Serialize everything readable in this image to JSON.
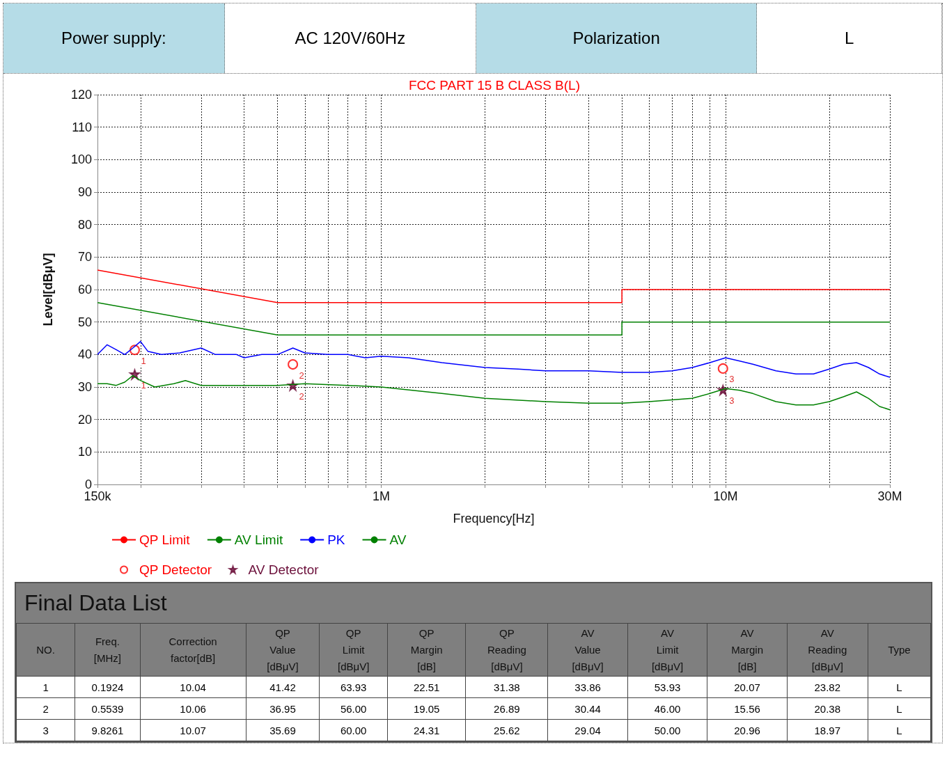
{
  "chart_data": [
    {
      "type": "other",
      "cell_labels": [
        [
          "Power supply:",
          "AC 120V/60Hz",
          "Polarization",
          "L"
        ]
      ]
    },
    {
      "type": "line",
      "title": "FCC PART 15 B CLASS B(L)",
      "xlabel": "Frequency[Hz]",
      "ylabel": "Level[dBμV]",
      "log": "x",
      "grid": true,
      "legend": "bottom left",
      "marker": "none",
      "line_style": "solid",
      "xlim": [
        150000,
        30000000
      ],
      "xticks": [
        {
          "value": 150000,
          "label": "150k"
        },
        {
          "value": 200000,
          "label": null
        },
        {
          "value": 300000,
          "label": null
        },
        {
          "value": 400000,
          "label": null
        },
        {
          "value": 500000,
          "label": null
        },
        {
          "value": 600000,
          "label": null
        },
        {
          "value": 700000,
          "label": null
        },
        {
          "value": 800000,
          "label": null
        },
        {
          "value": 900000,
          "label": null
        },
        {
          "value": 1000000,
          "label": "1M"
        },
        {
          "value": 2000000,
          "label": null
        },
        {
          "value": 3000000,
          "label": null
        },
        {
          "value": 4000000,
          "label": null
        },
        {
          "value": 5000000,
          "label": null
        },
        {
          "value": 6000000,
          "label": null
        },
        {
          "value": 7000000,
          "label": null
        },
        {
          "value": 8000000,
          "label": null
        },
        {
          "value": 9000000,
          "label": null
        },
        {
          "value": 10000000,
          "label": "10M"
        },
        {
          "value": 20000000,
          "label": null
        },
        {
          "value": 30000000,
          "label": "30M"
        }
      ],
      "ylim": [
        0,
        120
      ],
      "yticks": [
        0,
        10,
        20,
        30,
        40,
        50,
        60,
        70,
        80,
        90,
        100,
        110,
        120
      ],
      "series": [
        {
          "name": "QP Limit",
          "color": "#ff0000",
          "x": [
            150000,
            500000,
            5000000,
            5000000,
            30000000
          ],
          "values": [
            66,
            56,
            56,
            60,
            60
          ]
        },
        {
          "name": "AV Limit",
          "color": "#008000",
          "x": [
            150000,
            500000,
            5000000,
            5000000,
            30000000
          ],
          "values": [
            56,
            46,
            46,
            50,
            50
          ]
        },
        {
          "name": "PK",
          "color": "#0000ff",
          "x": [
            150000,
            160000,
            170000,
            180000,
            190000,
            200000,
            210000,
            230000,
            260000,
            300000,
            330000,
            380000,
            400000,
            450000,
            500000,
            554000,
            600000,
            700000,
            800000,
            900000,
            1000000,
            1200000,
            1500000,
            2000000,
            2500000,
            3000000,
            4000000,
            5000000,
            6000000,
            7000000,
            8000000,
            9000000,
            10000000,
            11000000,
            12000000,
            14000000,
            16000000,
            18000000,
            20000000,
            22000000,
            24000000,
            26000000,
            28000000,
            30000000
          ],
          "values": [
            40,
            43,
            41.5,
            40,
            42,
            44,
            41,
            40,
            40.5,
            42,
            40,
            40,
            39,
            40,
            40,
            42,
            40.5,
            40,
            40,
            39,
            39.5,
            39,
            37.5,
            36,
            35.5,
            35,
            35,
            34.5,
            34.5,
            35,
            36,
            37.5,
            39,
            38,
            37,
            35,
            34,
            34,
            35.5,
            37,
            37.5,
            36,
            34,
            33
          ]
        },
        {
          "name": "AV",
          "color": "#008000",
          "x": [
            150000,
            160000,
            170000,
            180000,
            190000,
            200000,
            220000,
            250000,
            270000,
            300000,
            400000,
            500000,
            600000,
            800000,
            1000000,
            1500000,
            2000000,
            3000000,
            4000000,
            5000000,
            6000000,
            8000000,
            9000000,
            10000000,
            11000000,
            12000000,
            14000000,
            16000000,
            18000000,
            20000000,
            22000000,
            24000000,
            26000000,
            28000000,
            30000000
          ],
          "values": [
            31,
            31,
            30.5,
            31.5,
            33.5,
            32,
            30,
            31,
            32,
            30.5,
            30.5,
            30.5,
            31,
            30.5,
            30,
            28,
            26.5,
            25.5,
            25,
            25,
            25.5,
            26.5,
            28,
            29.5,
            29,
            28,
            25.5,
            24.5,
            24.5,
            25.5,
            27,
            28.5,
            26.5,
            24,
            23
          ]
        },
        {
          "name": "QP Detector",
          "type": "scatter",
          "marker": "circle",
          "color": "#ff0000",
          "x": [
            192400,
            553900,
            9826100
          ],
          "values": [
            41.42,
            36.95,
            35.69
          ]
        },
        {
          "name": "AV Detector",
          "type": "scatter",
          "marker": "star",
          "color": "#6b0f3a",
          "x": [
            192400,
            553900,
            9826100
          ],
          "values": [
            33.86,
            30.44,
            29.04
          ]
        }
      ],
      "annotations": [
        {
          "text": "1",
          "x": 192400,
          "y": 41.42
        },
        {
          "text": "2",
          "x": 553900,
          "y": 36.95
        },
        {
          "text": "3",
          "x": 9826100,
          "y": 35.69
        },
        {
          "text": "1",
          "x": 192400,
          "y": 33.86
        },
        {
          "text": "2",
          "x": 553900,
          "y": 30.44
        },
        {
          "text": "3",
          "x": 9826100,
          "y": 29.04
        }
      ]
    },
    {
      "type": "other",
      "title": "Final Data List",
      "categories": [
        "NO.",
        "Freq.\n[MHz]",
        "Correction\nfactor[dB]",
        "QP\nValue\n[dBμV]",
        "QP\nLimit\n[dBμV]",
        "QP\nMargin\n[dB]",
        "QP\nReading\n[dBμV]",
        "AV\nValue\n[dBμV]",
        "AV\nLimit\n[dBμV]",
        "AV\nMargin\n[dB]",
        "AV\nReading\n[dBμV]",
        "Type"
      ],
      "cell_labels": [
        [
          "1",
          "0.1924",
          "10.04",
          "41.42",
          "63.93",
          "22.51",
          "31.38",
          "33.86",
          "53.93",
          "20.07",
          "23.82",
          "L"
        ],
        [
          "2",
          "0.5539",
          "10.06",
          "36.95",
          "56.00",
          "19.05",
          "26.89",
          "30.44",
          "46.00",
          "15.56",
          "20.38",
          "L"
        ],
        [
          "3",
          "9.8261",
          "10.07",
          "35.69",
          "60.00",
          "24.31",
          "25.62",
          "29.04",
          "50.00",
          "20.96",
          "18.97",
          "L"
        ]
      ]
    }
  ]
}
